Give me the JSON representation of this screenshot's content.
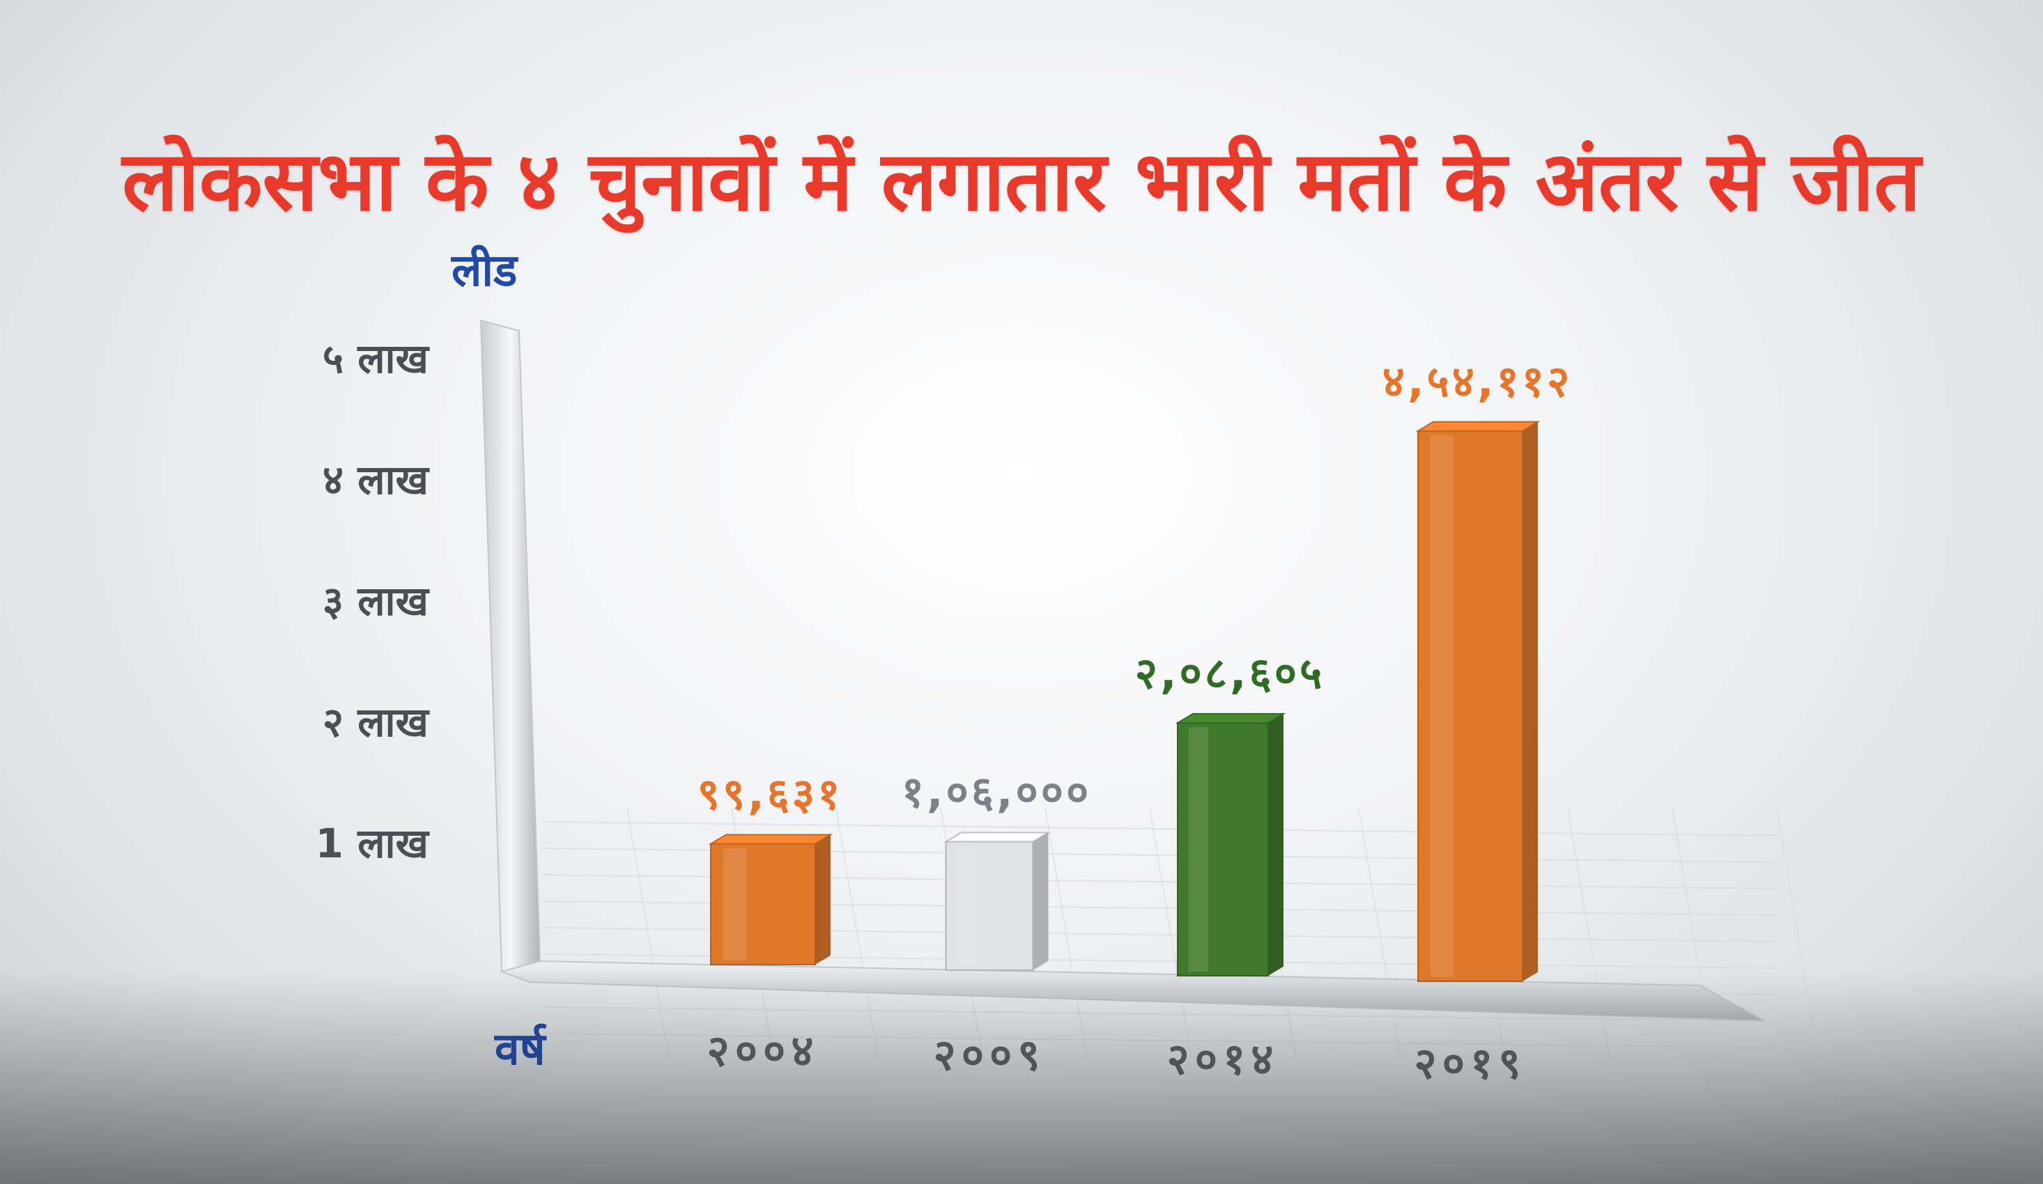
{
  "chart_data": {
    "type": "bar",
    "title": "लोकसभा के ४ चुनावों में लगातार भारी मतों के अंतर से जीत",
    "ylabel": "लीड",
    "xlabel": "वर्ष",
    "ylim": [
      0,
      500000
    ],
    "yticks": [
      {
        "value": 100000,
        "label": "1 लाख"
      },
      {
        "value": 200000,
        "label": "२ लाख"
      },
      {
        "value": 300000,
        "label": "३ लाख"
      },
      {
        "value": 400000,
        "label": "४ लाख"
      },
      {
        "value": 500000,
        "label": "५ लाख"
      }
    ],
    "categories": [
      "२००४",
      "२००९",
      "२०१४",
      "२०१९"
    ],
    "values": [
      99631,
      106000,
      208605,
      454112
    ],
    "data_labels": [
      "९९,६३१",
      "१,०६,०००",
      "२,०८,६०५",
      "४,५४,११२"
    ],
    "colors": [
      "#e0782a",
      "#dfe1e4",
      "#3f7a2a",
      "#e0782a"
    ],
    "label_colors": [
      "#e8742a",
      "#7d8088",
      "#2f6b22",
      "#e8742a"
    ],
    "grid": true,
    "legend": "none"
  }
}
